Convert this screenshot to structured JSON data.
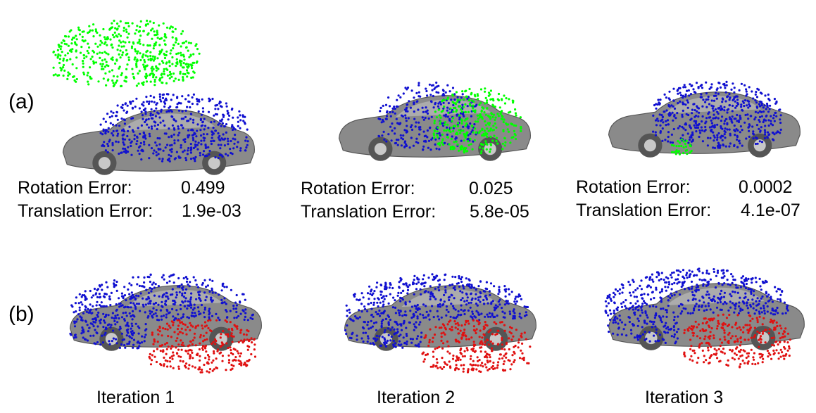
{
  "row_labels": {
    "a": "(a)",
    "b": "(b)"
  },
  "colors": {
    "source_points": "#00ff00",
    "target_points": "#1010d0",
    "correspondence_points": "#e01010",
    "car_body": "#8a8a8a",
    "car_body_dark": "#555555",
    "car_highlight": "#c8c8c8"
  },
  "registration_results": [
    {
      "rotation_label": "Rotation Error:",
      "rotation_value": "0.499",
      "translation_label": "Translation Error:",
      "translation_value": "1.9e-03"
    },
    {
      "rotation_label": "Rotation Error:",
      "rotation_value": "0.025",
      "translation_label": "Translation Error:",
      "translation_value": "5.8e-05"
    },
    {
      "rotation_label": "Rotation Error:",
      "rotation_value": "0.0002",
      "translation_label": "Translation Error:",
      "translation_value": "4.1e-07"
    }
  ],
  "iterations": [
    {
      "label": "Iteration 1"
    },
    {
      "label": "Iteration 2"
    },
    {
      "label": "Iteration 3"
    }
  ]
}
